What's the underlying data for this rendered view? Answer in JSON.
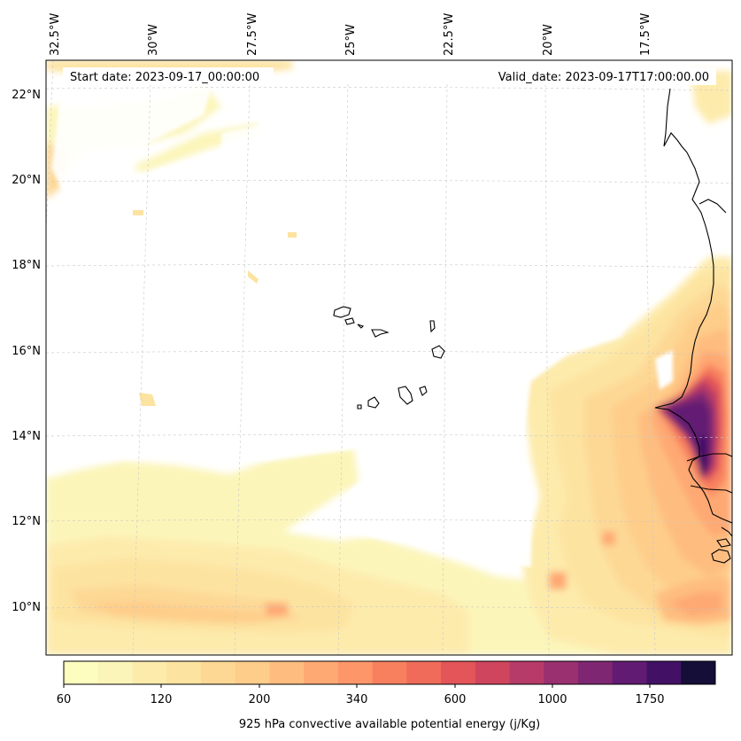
{
  "map": {
    "start_date": "Start date: 2023-09-17_00:00:00",
    "valid_date": "Valid_date: 2023-09-17T17:00:00.00",
    "lon_labels": [
      "32.5°W",
      "30°W",
      "27.5°W",
      "25°W",
      "22.5°W",
      "20°W",
      "17.5°W"
    ],
    "lat_labels": [
      "22°N",
      "20°N",
      "18°N",
      "16°N",
      "14°N",
      "12°N",
      "10°N"
    ]
  },
  "colorbar": {
    "title": "925 hPa convective available potential energy (j/Kg)",
    "tick_labels": [
      "60",
      "120",
      "200",
      "340",
      "600",
      "1000",
      "1750"
    ],
    "colors": [
      "#fcfdbf",
      "#fcf5b9",
      "#fdebac",
      "#fde3a0",
      "#fdd895",
      "#fecd8a",
      "#febd7f",
      "#fea973",
      "#fd9669",
      "#f8805f",
      "#f06b5a",
      "#e35559",
      "#d0455e",
      "#b73b68",
      "#9a306f",
      "#7f2672",
      "#621b73",
      "#421166",
      "#150e38"
    ]
  }
}
